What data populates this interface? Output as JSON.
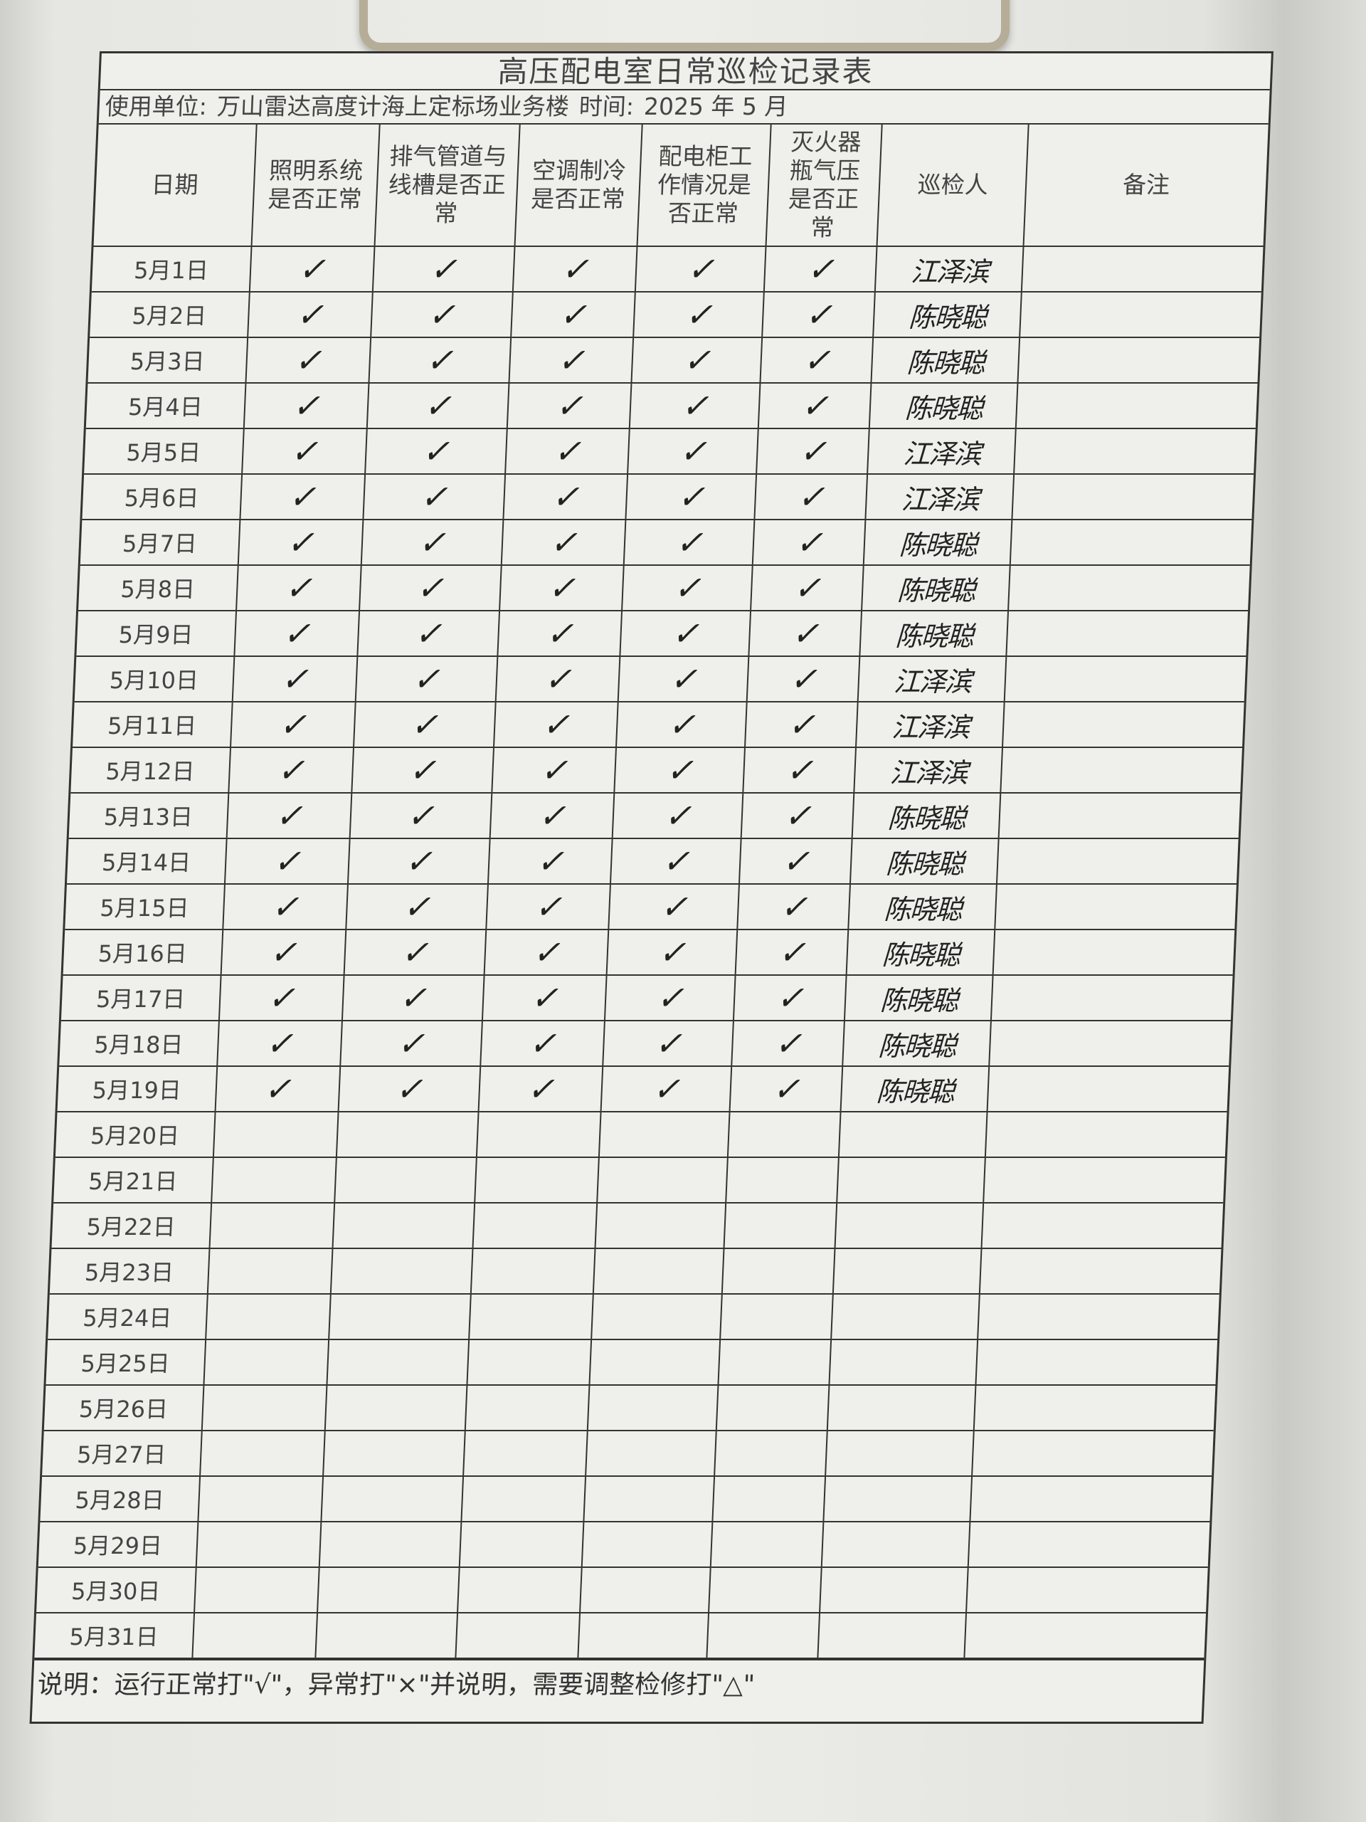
{
  "title": "高压配电室日常巡检记录表",
  "unit_label": "使用单位:",
  "unit_value": "万山雷达高度计海上定标场业务楼",
  "time_label": "时间:",
  "time_value": "2025 年 5 月",
  "columns": [
    "日期",
    "照明系统是否正常",
    "排气管道与线槽是否正常",
    "空调制冷是否正常",
    "配电柜工作情况是否正常",
    "灭火器瓶气压是否正常",
    "巡检人",
    "备注"
  ],
  "check_mark": "✓",
  "rows": [
    {
      "date": "5月1日",
      "checks": [
        1,
        1,
        1,
        1,
        1
      ],
      "inspector": "江泽滨"
    },
    {
      "date": "5月2日",
      "checks": [
        1,
        1,
        1,
        1,
        1
      ],
      "inspector": "陈晓聪"
    },
    {
      "date": "5月3日",
      "checks": [
        1,
        1,
        1,
        1,
        1
      ],
      "inspector": "陈晓聪"
    },
    {
      "date": "5月4日",
      "checks": [
        1,
        1,
        1,
        1,
        1
      ],
      "inspector": "陈晓聪"
    },
    {
      "date": "5月5日",
      "checks": [
        1,
        1,
        1,
        1,
        1
      ],
      "inspector": "江泽滨"
    },
    {
      "date": "5月6日",
      "checks": [
        1,
        1,
        1,
        1,
        1
      ],
      "inspector": "江泽滨"
    },
    {
      "date": "5月7日",
      "checks": [
        1,
        1,
        1,
        1,
        1
      ],
      "inspector": "陈晓聪"
    },
    {
      "date": "5月8日",
      "checks": [
        1,
        1,
        1,
        1,
        1
      ],
      "inspector": "陈晓聪"
    },
    {
      "date": "5月9日",
      "checks": [
        1,
        1,
        1,
        1,
        1
      ],
      "inspector": "陈晓聪"
    },
    {
      "date": "5月10日",
      "checks": [
        1,
        1,
        1,
        1,
        1
      ],
      "inspector": "江泽滨"
    },
    {
      "date": "5月11日",
      "checks": [
        1,
        1,
        1,
        1,
        1
      ],
      "inspector": "江泽滨"
    },
    {
      "date": "5月12日",
      "checks": [
        1,
        1,
        1,
        1,
        1
      ],
      "inspector": "江泽滨"
    },
    {
      "date": "5月13日",
      "checks": [
        1,
        1,
        1,
        1,
        1
      ],
      "inspector": "陈晓聪"
    },
    {
      "date": "5月14日",
      "checks": [
        1,
        1,
        1,
        1,
        1
      ],
      "inspector": "陈晓聪"
    },
    {
      "date": "5月15日",
      "checks": [
        1,
        1,
        1,
        1,
        1
      ],
      "inspector": "陈晓聪"
    },
    {
      "date": "5月16日",
      "checks": [
        1,
        1,
        1,
        1,
        1
      ],
      "inspector": "陈晓聪"
    },
    {
      "date": "5月17日",
      "checks": [
        1,
        1,
        1,
        1,
        1
      ],
      "inspector": "陈晓聪"
    },
    {
      "date": "5月18日",
      "checks": [
        1,
        1,
        1,
        1,
        1
      ],
      "inspector": "陈晓聪"
    },
    {
      "date": "5月19日",
      "checks": [
        1,
        1,
        1,
        1,
        1
      ],
      "inspector": "陈晓聪"
    },
    {
      "date": "5月20日",
      "checks": [
        0,
        0,
        0,
        0,
        0
      ],
      "inspector": ""
    },
    {
      "date": "5月21日",
      "checks": [
        0,
        0,
        0,
        0,
        0
      ],
      "inspector": ""
    },
    {
      "date": "5月22日",
      "checks": [
        0,
        0,
        0,
        0,
        0
      ],
      "inspector": ""
    },
    {
      "date": "5月23日",
      "checks": [
        0,
        0,
        0,
        0,
        0
      ],
      "inspector": ""
    },
    {
      "date": "5月24日",
      "checks": [
        0,
        0,
        0,
        0,
        0
      ],
      "inspector": ""
    },
    {
      "date": "5月25日",
      "checks": [
        0,
        0,
        0,
        0,
        0
      ],
      "inspector": ""
    },
    {
      "date": "5月26日",
      "checks": [
        0,
        0,
        0,
        0,
        0
      ],
      "inspector": ""
    },
    {
      "date": "5月27日",
      "checks": [
        0,
        0,
        0,
        0,
        0
      ],
      "inspector": ""
    },
    {
      "date": "5月28日",
      "checks": [
        0,
        0,
        0,
        0,
        0
      ],
      "inspector": ""
    },
    {
      "date": "5月29日",
      "checks": [
        0,
        0,
        0,
        0,
        0
      ],
      "inspector": ""
    },
    {
      "date": "5月30日",
      "checks": [
        0,
        0,
        0,
        0,
        0
      ],
      "inspector": ""
    },
    {
      "date": "5月31日",
      "checks": [
        0,
        0,
        0,
        0,
        0
      ],
      "inspector": ""
    }
  ],
  "note": "说明：运行正常打\"√\"，异常打\"×\"并说明，需要调整检修打\"△\""
}
